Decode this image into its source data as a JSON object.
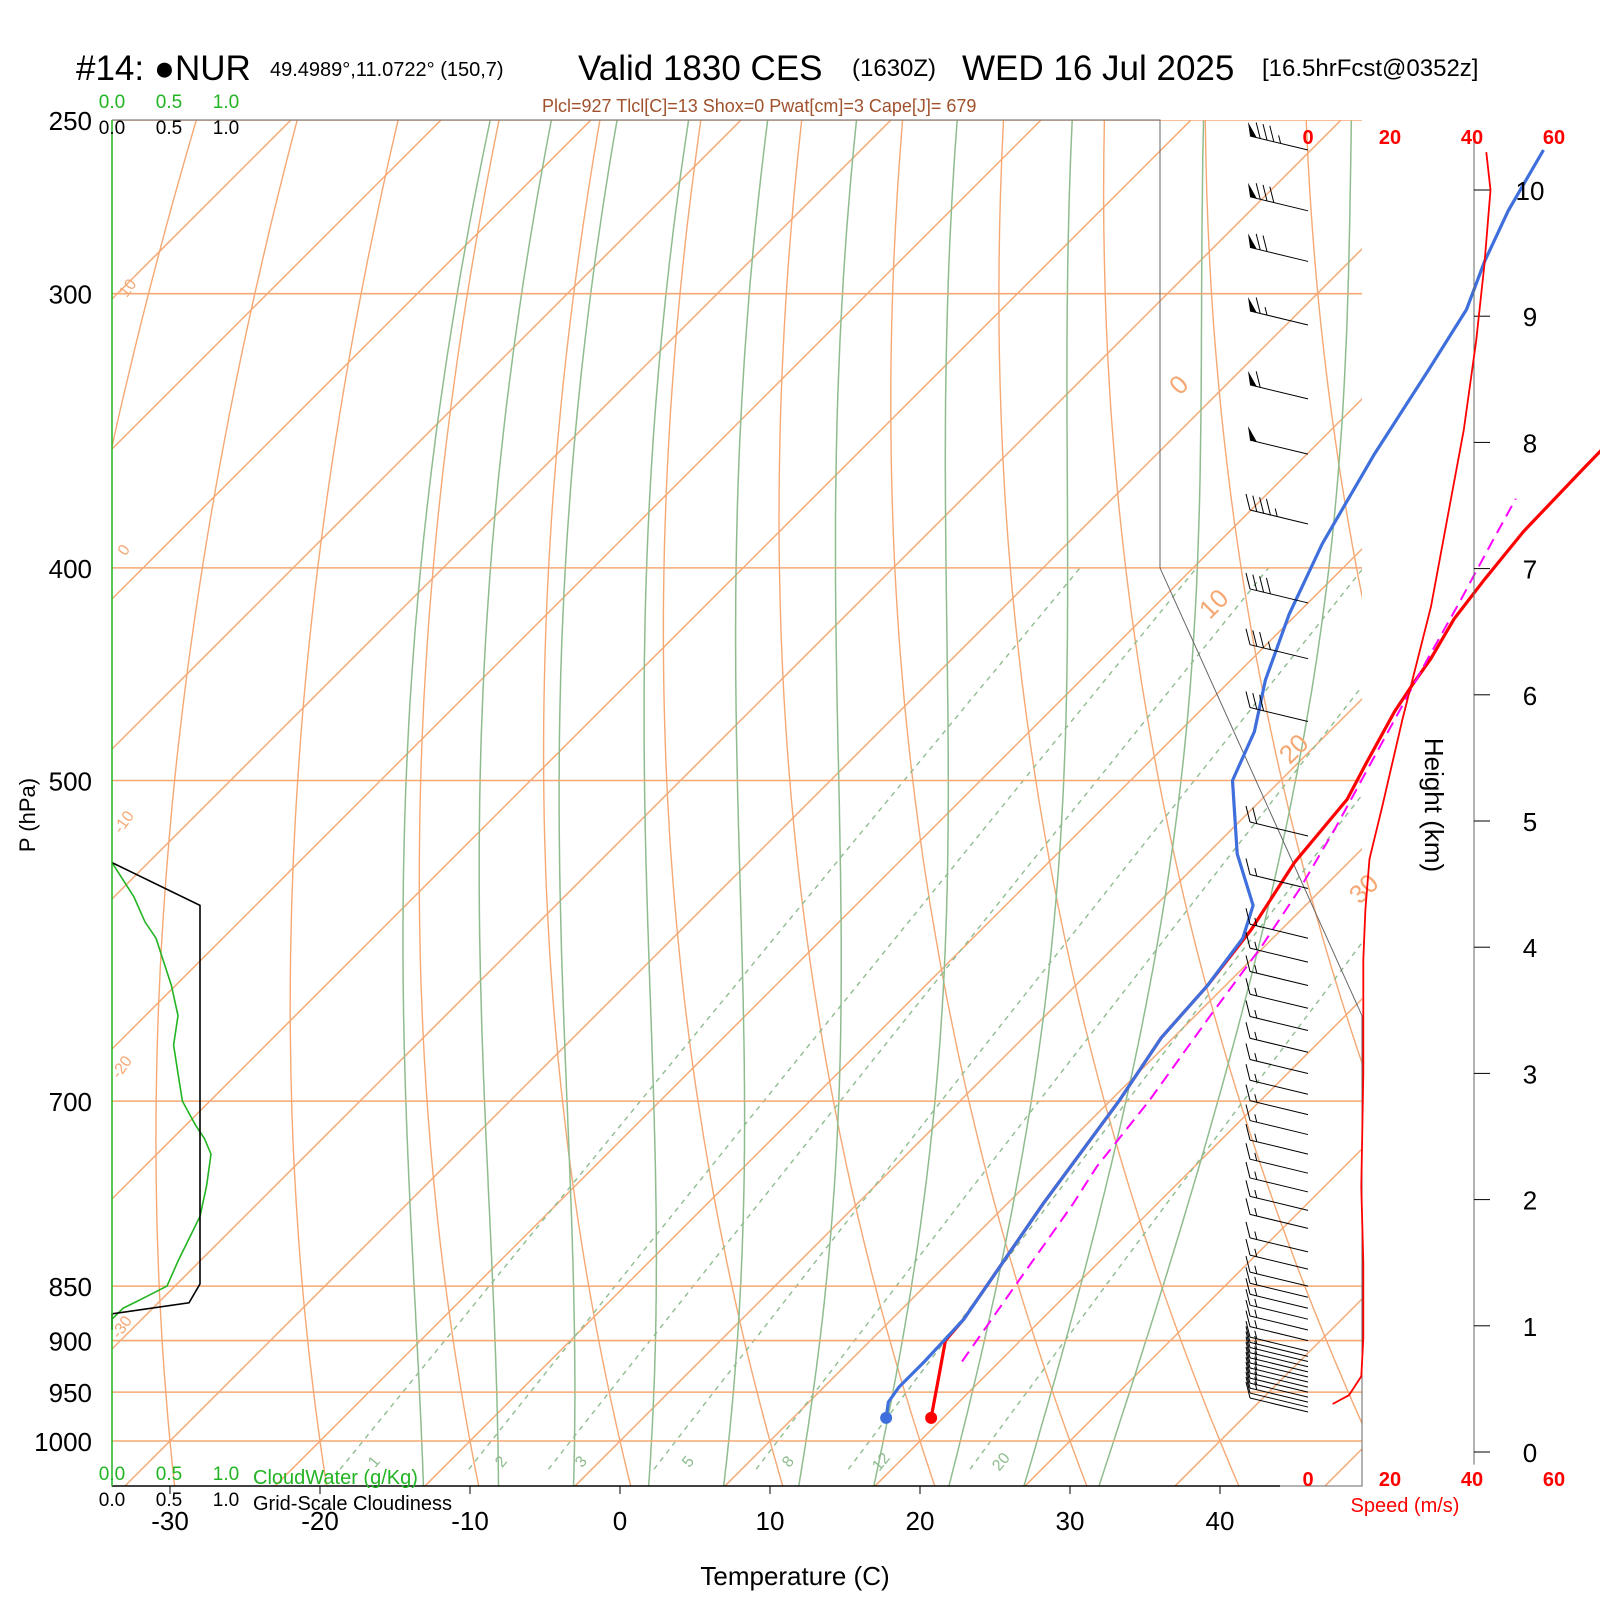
{
  "header": {
    "station": "#14: ●NUR",
    "coords": "49.4989°,11.0722° (150,7)",
    "valid": "Valid 1830 CES",
    "zulu": "(1630Z)",
    "date": "WED 16 Jul 2025",
    "forecast": "[16.5hrFcst@0352z]",
    "indices": "Plcl=927 Tlcl[C]=13 Shox=0 Pwat[cm]=3 Cape[J]= 679"
  },
  "colors": {
    "temperature": "#ff0000",
    "dewpoint": "#3f6fdc",
    "parcel": "#ff00ff",
    "isotherm": "#f5a873",
    "dry_adiabat": "#f5a873",
    "moist_adiabat": "#8fbc8f",
    "mixing_ratio": "#8fbc8f",
    "cloud_water": "#22b422",
    "cloudiness": "#000000",
    "speed": "#ff0000"
  },
  "chart_data": {
    "type": "line",
    "xlabel": "Temperature (C)",
    "ylabel": "P (hPa)",
    "xlim": [
      -33.5,
      36
    ],
    "ylim": [
      1030,
      250
    ],
    "x_ticks": [
      "-30",
      "-20",
      "-10",
      "0",
      "10",
      "20",
      "30",
      "40"
    ],
    "pressure_ticks": [
      250,
      300,
      400,
      500,
      700,
      850,
      900,
      950,
      1000
    ],
    "isotherm_labels": [
      "10",
      "0",
      "-10",
      "-20",
      "-30",
      "0",
      "10",
      "20",
      "30"
    ],
    "mixing_ratio_labels": [
      "1",
      "2",
      "3",
      "5",
      "8",
      "12",
      "20"
    ],
    "series": [
      {
        "name": "Temperature",
        "points": [
          [
            19.2,
            976
          ],
          [
            16.7,
            930
          ],
          [
            15.0,
            900
          ],
          [
            14.8,
            880
          ],
          [
            12.4,
            780
          ],
          [
            10.6,
            700
          ],
          [
            9.2,
            655
          ],
          [
            8.8,
            620
          ],
          [
            8.0,
            585
          ],
          [
            6.4,
            545
          ],
          [
            5.7,
            510
          ],
          [
            4.5,
            490
          ],
          [
            3.0,
            465
          ],
          [
            2.4,
            452
          ],
          [
            1.9,
            440
          ],
          [
            0.8,
            422
          ],
          [
            0.2,
            405
          ],
          [
            -0.4,
            385
          ],
          [
            -0.6,
            360
          ],
          [
            -0.7,
            340
          ],
          [
            -0.6,
            320
          ],
          [
            -0.4,
            300
          ],
          [
            0.0,
            285
          ],
          [
            0.5,
            270
          ],
          [
            1.0,
            262
          ],
          [
            1.2,
            258
          ]
        ]
      },
      {
        "name": "Dewpoint",
        "points": [
          [
            16.2,
            976
          ],
          [
            15.3,
            960
          ],
          [
            15.0,
            945
          ],
          [
            15.0,
            920
          ],
          [
            14.9,
            900
          ],
          [
            14.8,
            880
          ],
          [
            12.4,
            780
          ],
          [
            10.6,
            700
          ],
          [
            9.2,
            655
          ],
          [
            8.8,
            620
          ],
          [
            8.0,
            590
          ],
          [
            6.5,
            570
          ],
          [
            2.0,
            540
          ],
          [
            -3.2,
            500
          ],
          [
            -5.0,
            475
          ],
          [
            -7.7,
            450
          ],
          [
            -10.5,
            420
          ],
          [
            -13.0,
            390
          ],
          [
            -15.5,
            355
          ],
          [
            -17.5,
            325
          ],
          [
            -19.0,
            305
          ],
          [
            -21.0,
            290
          ],
          [
            -22.8,
            275
          ],
          [
            -24.5,
            258
          ]
        ]
      },
      {
        "name": "Parcel",
        "points": [
          [
            17.5,
            920
          ],
          [
            16.0,
            850
          ],
          [
            14.4,
            780
          ],
          [
            13.5,
            750
          ],
          [
            12.6,
            700
          ],
          [
            11.0,
            640
          ],
          [
            9.8,
            595
          ],
          [
            8.5,
            560
          ],
          [
            6.8,
            525
          ],
          [
            5.1,
            495
          ],
          [
            3.3,
            465
          ],
          [
            1.7,
            440
          ],
          [
            0.0,
            414
          ],
          [
            -1.6,
            392
          ],
          [
            -3.1,
            372
          ]
        ]
      }
    ],
    "cloud_profile": {
      "xlim": [
        0,
        1.0
      ],
      "xticks": [
        "0.0",
        "0.5",
        "1.0"
      ],
      "cloud_water_label": "CloudWater (g/Kg)",
      "cloudiness_label": "Grid-Scale Cloudiness",
      "cloud_water": [
        [
          0.0,
          545
        ],
        [
          0.1,
          565
        ],
        [
          0.15,
          580
        ],
        [
          0.2,
          590
        ],
        [
          0.27,
          620
        ],
        [
          0.3,
          640
        ],
        [
          0.28,
          660
        ],
        [
          0.3,
          680
        ],
        [
          0.32,
          700
        ],
        [
          0.38,
          718
        ],
        [
          0.42,
          728
        ],
        [
          0.45,
          740
        ],
        [
          0.43,
          765
        ],
        [
          0.4,
          790
        ],
        [
          0.3,
          828
        ],
        [
          0.25,
          850
        ],
        [
          0.15,
          860
        ],
        [
          0.05,
          870
        ],
        [
          0.0,
          880
        ]
      ],
      "cloudiness": [
        [
          0.0,
          545
        ],
        [
          0.4,
          570
        ],
        [
          0.4,
          578
        ],
        [
          0.4,
          848
        ],
        [
          0.35,
          865
        ],
        [
          0.0,
          875
        ],
        [
          0.0,
          890
        ]
      ]
    },
    "wind_speed": {
      "xlabel": "Speed (m/s)",
      "x_ticks": [
        "0",
        "20",
        "40",
        "60"
      ],
      "xlim": [
        0,
        60
      ],
      "height_label": "Height (km)",
      "height_ticks": [
        "0",
        "1",
        "2",
        "3",
        "4",
        "5",
        "6",
        "7",
        "8",
        "9",
        "10"
      ],
      "ylim_km": [
        0,
        10.5
      ],
      "points": [
        [
          6,
          0.38
        ],
        [
          10,
          0.45
        ],
        [
          13,
          0.6
        ],
        [
          13.5,
          0.9
        ],
        [
          13.5,
          1.5
        ],
        [
          13,
          2.1
        ],
        [
          13.5,
          3.0
        ],
        [
          13.5,
          3.9
        ],
        [
          14,
          4.3
        ],
        [
          15,
          4.7
        ],
        [
          18,
          5.1
        ],
        [
          23,
          5.8
        ],
        [
          30,
          6.7
        ],
        [
          34,
          7.4
        ],
        [
          38,
          8.1
        ],
        [
          41,
          8.8
        ],
        [
          43,
          9.4
        ],
        [
          44.5,
          10.0
        ],
        [
          43.5,
          10.3
        ]
      ]
    },
    "wind_barbs": {
      "p_levels": [
        970,
        965,
        960,
        955,
        950,
        945,
        940,
        935,
        930,
        925,
        920,
        915,
        910,
        900,
        890,
        880,
        870,
        860,
        850,
        835,
        820,
        800,
        785,
        770,
        755,
        740,
        725,
        710,
        695,
        680,
        665,
        650,
        635,
        620,
        605,
        590,
        560,
        530,
        470,
        440,
        415,
        382,
        355,
        335,
        310,
        290,
        275,
        258
      ],
      "speed_ms": [
        6,
        7,
        8,
        8,
        9,
        9,
        9,
        9,
        9,
        9,
        9,
        9,
        9,
        9,
        9,
        9,
        9,
        9,
        9,
        9,
        9,
        9,
        9,
        9,
        9,
        9,
        9,
        9,
        9,
        9,
        9,
        9,
        9,
        9,
        9,
        9,
        9,
        11,
        17,
        18,
        22,
        25,
        28,
        32,
        35,
        38,
        42,
        45
      ]
    }
  }
}
